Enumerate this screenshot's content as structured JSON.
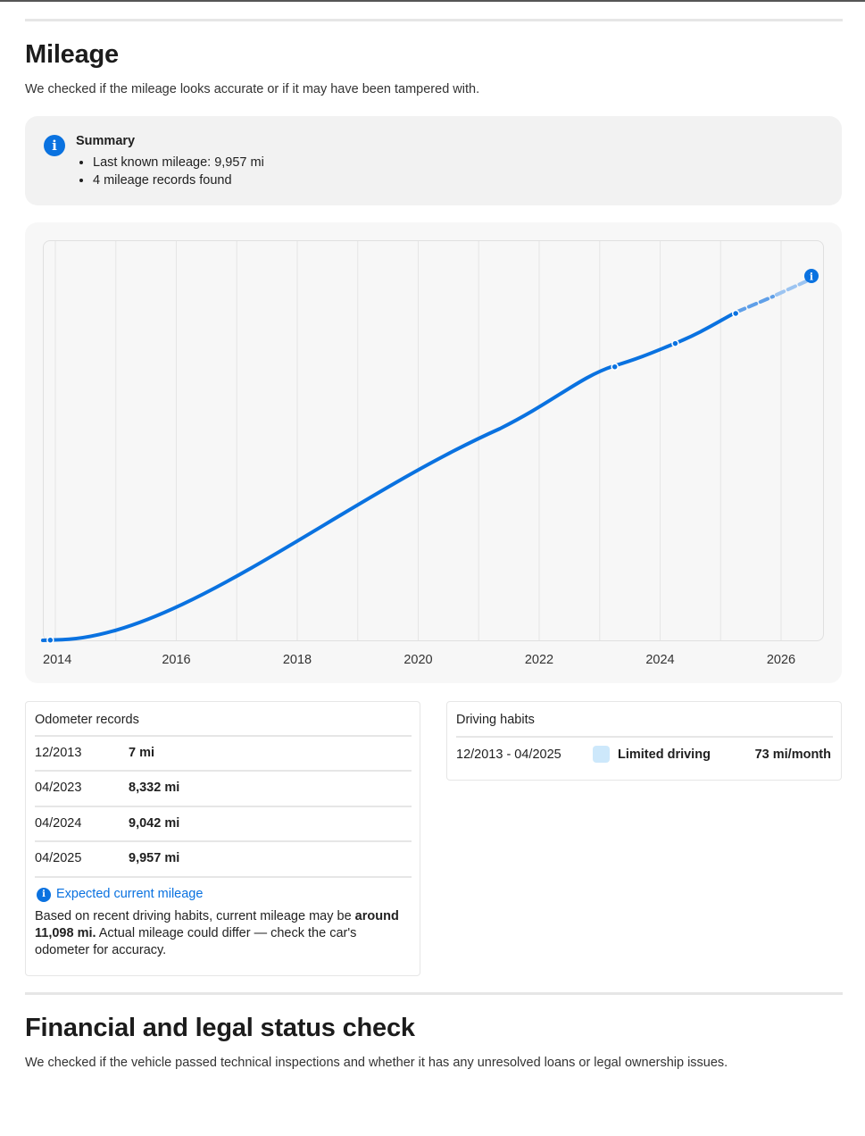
{
  "mileage": {
    "title": "Mileage",
    "subtitle": "We checked if the mileage looks accurate or if it may have been tampered with."
  },
  "summary": {
    "icon": "info-icon",
    "title": "Summary",
    "items": [
      "Last known mileage: 9,957 mi",
      "4 mileage records found"
    ]
  },
  "chart_data": {
    "type": "line",
    "x_ticks": [
      "2014",
      "2016",
      "2018",
      "2020",
      "2022",
      "2024",
      "2026"
    ],
    "series": [
      {
        "role": "recorded",
        "points": [
          {
            "date": "12/2013",
            "mileage": 7
          },
          {
            "date": "04/2023",
            "mileage": 8332
          },
          {
            "date": "04/2024",
            "mileage": 9042
          },
          {
            "date": "04/2025",
            "mileage": 9957
          }
        ],
        "color": "#0a72e0"
      },
      {
        "role": "projected",
        "points": [
          {
            "date": "04/2025",
            "mileage": 9957
          },
          {
            "date": "08/2026",
            "mileage": 11098
          }
        ],
        "color": "#7fb2ee",
        "style": "dashed"
      }
    ],
    "grid": "vertical"
  },
  "odometer": {
    "title": "Odometer records",
    "rows": [
      {
        "date": "12/2013",
        "value": "7 mi"
      },
      {
        "date": "04/2023",
        "value": "8,332 mi"
      },
      {
        "date": "04/2024",
        "value": "9,042 mi"
      },
      {
        "date": "04/2025",
        "value": "9,957 mi"
      }
    ],
    "expected_link": "Expected current mileage",
    "expected_pre": "Based on recent driving habits, current mileage may be ",
    "expected_bold": "around 11,098 mi.",
    "expected_post": " Actual mileage could differ — check the car's odometer for accuracy."
  },
  "habits": {
    "title": "Driving habits",
    "range": "12/2013 - 04/2025",
    "label": "Limited driving",
    "rate": "73 mi/month",
    "swatch_color": "#cde8fb"
  },
  "financial": {
    "title": "Financial and legal status check",
    "subtitle": "We checked if the vehicle passed technical inspections and whether it has any unresolved loans or legal ownership issues."
  }
}
